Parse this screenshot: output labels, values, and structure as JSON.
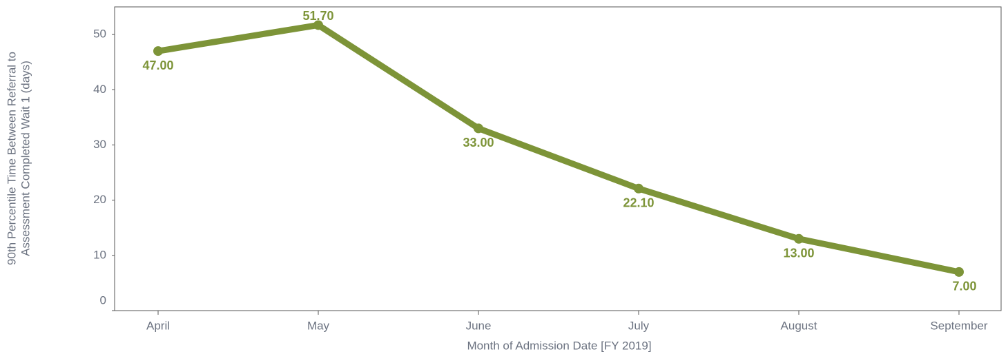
{
  "chart_data": {
    "type": "line",
    "x_label": "Month of Admission Date [FY 2019]",
    "y_label": [
      "90th Percentile Time Between Referral to",
      "Assessment Completed Wait 1 (days)"
    ],
    "categories": [
      "April",
      "May",
      "June",
      "July",
      "August",
      "September"
    ],
    "series": [
      {
        "name": "90th Percentile",
        "color": "#7d9438",
        "values": [
          47,
          51.7,
          33,
          22.1,
          13,
          7
        ],
        "value_labels": [
          "47.00",
          "51.70",
          "33.00",
          "22.10",
          "13.00",
          "7.00"
        ]
      }
    ],
    "ylim": [
      0,
      55
    ],
    "yticks": [
      0,
      10,
      20,
      30,
      40,
      50
    ],
    "grid": false
  }
}
